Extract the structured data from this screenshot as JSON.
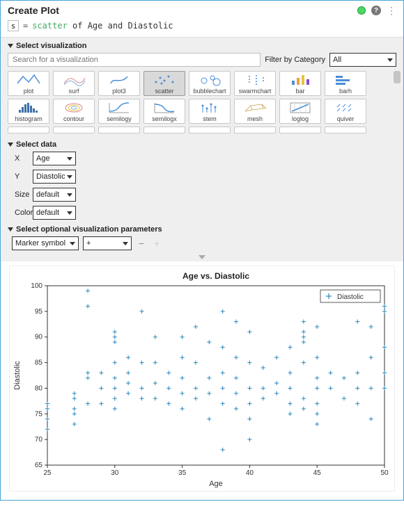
{
  "header": {
    "title": "Create Plot"
  },
  "formula": {
    "var": "s",
    "eq": "=",
    "fn": "scatter",
    "rest": " of Age and Diastolic"
  },
  "viz_section": {
    "label": "Select visualization",
    "search_placeholder": "Search for a visualization",
    "filter_label": "Filter by Category",
    "filter_value": "All",
    "row1": [
      "plot",
      "surf",
      "plot3",
      "scatter",
      "bubblechart",
      "swarmchart",
      "bar",
      "barh"
    ],
    "row2": [
      "histogram",
      "contour",
      "semilogy",
      "semilogx",
      "stem",
      "mesh",
      "loglog",
      "quiver"
    ],
    "selected": "scatter"
  },
  "data_section": {
    "label": "Select data",
    "rows": [
      {
        "k": "X",
        "v": "Age"
      },
      {
        "k": "Y",
        "v": "Diastolic"
      },
      {
        "k": "Size",
        "v": "default"
      },
      {
        "k": "Color",
        "v": "default"
      }
    ]
  },
  "opt_section": {
    "label": "Select optional visualization parameters",
    "param": "Marker symbol",
    "value": "+"
  },
  "chart": {
    "title": "Age vs. Diastolic",
    "xlabel": "Age",
    "ylabel": "Diastolic",
    "xlim": [
      25,
      50
    ],
    "ylim": [
      65,
      100
    ],
    "xticks": [
      25,
      30,
      35,
      40,
      45,
      50
    ],
    "yticks": [
      65,
      70,
      75,
      80,
      85,
      90,
      95,
      100
    ],
    "legend_label": "Diastolic",
    "marker_color": "#3b8fc2",
    "axis_color": "#333333",
    "bg": "#ffffff",
    "title_fontsize": 12,
    "label_fontsize": 11,
    "tick_fontsize": 10,
    "points": [
      [
        25,
        77
      ],
      [
        25,
        76
      ],
      [
        25,
        74
      ],
      [
        25,
        72
      ],
      [
        27,
        79
      ],
      [
        27,
        76
      ],
      [
        27,
        75
      ],
      [
        27,
        73
      ],
      [
        27,
        78
      ],
      [
        28,
        96
      ],
      [
        28,
        99
      ],
      [
        28,
        82
      ],
      [
        28,
        83
      ],
      [
        28,
        77
      ],
      [
        29,
        80
      ],
      [
        29,
        83
      ],
      [
        29,
        77
      ],
      [
        30,
        90
      ],
      [
        30,
        91
      ],
      [
        30,
        89
      ],
      [
        30,
        85
      ],
      [
        30,
        82
      ],
      [
        30,
        80
      ],
      [
        30,
        78
      ],
      [
        30,
        76
      ],
      [
        31,
        86
      ],
      [
        31,
        83
      ],
      [
        31,
        81
      ],
      [
        31,
        79
      ],
      [
        32,
        85
      ],
      [
        32,
        80
      ],
      [
        32,
        78
      ],
      [
        32,
        95
      ],
      [
        33,
        85
      ],
      [
        33,
        81
      ],
      [
        33,
        78
      ],
      [
        33,
        90
      ],
      [
        34,
        83
      ],
      [
        34,
        80
      ],
      [
        34,
        77
      ],
      [
        35,
        86
      ],
      [
        35,
        82
      ],
      [
        35,
        79
      ],
      [
        35,
        76
      ],
      [
        35,
        90
      ],
      [
        36,
        92
      ],
      [
        36,
        85
      ],
      [
        36,
        80
      ],
      [
        36,
        78
      ],
      [
        37,
        89
      ],
      [
        37,
        82
      ],
      [
        37,
        79
      ],
      [
        37,
        74
      ],
      [
        38,
        88
      ],
      [
        38,
        95
      ],
      [
        38,
        83
      ],
      [
        38,
        80
      ],
      [
        38,
        77
      ],
      [
        38,
        68
      ],
      [
        39,
        93
      ],
      [
        39,
        86
      ],
      [
        39,
        82
      ],
      [
        39,
        79
      ],
      [
        39,
        76
      ],
      [
        40,
        91
      ],
      [
        40,
        85
      ],
      [
        40,
        80
      ],
      [
        40,
        77
      ],
      [
        40,
        74
      ],
      [
        40,
        70
      ],
      [
        41,
        84
      ],
      [
        41,
        80
      ],
      [
        41,
        78
      ],
      [
        42,
        86
      ],
      [
        42,
        81
      ],
      [
        42,
        79
      ],
      [
        43,
        88
      ],
      [
        43,
        83
      ],
      [
        43,
        80
      ],
      [
        43,
        77
      ],
      [
        43,
        75
      ],
      [
        44,
        91
      ],
      [
        44,
        93
      ],
      [
        44,
        90
      ],
      [
        44,
        89
      ],
      [
        44,
        85
      ],
      [
        44,
        78
      ],
      [
        44,
        76
      ],
      [
        45,
        92
      ],
      [
        45,
        80
      ],
      [
        45,
        82
      ],
      [
        45,
        77
      ],
      [
        45,
        75
      ],
      [
        45,
        73
      ],
      [
        45,
        86
      ],
      [
        46,
        83
      ],
      [
        46,
        80
      ],
      [
        47,
        82
      ],
      [
        47,
        78
      ],
      [
        48,
        93
      ],
      [
        48,
        80
      ],
      [
        48,
        83
      ],
      [
        48,
        77
      ],
      [
        49,
        92
      ],
      [
        49,
        86
      ],
      [
        49,
        80
      ],
      [
        49,
        74
      ],
      [
        50,
        96
      ],
      [
        50,
        95
      ],
      [
        50,
        88
      ],
      [
        50,
        83
      ],
      [
        50,
        80
      ]
    ]
  }
}
